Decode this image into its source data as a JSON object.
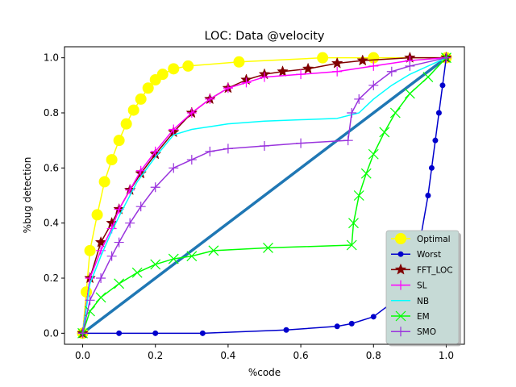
{
  "chart_data": {
    "type": "line",
    "title": "LOC: Data @velocity",
    "xlabel": "%code",
    "ylabel": "%bug detection",
    "xlim": [
      -0.05,
      1.05
    ],
    "ylim": [
      -0.04,
      1.04
    ],
    "xticks": [
      "0.0",
      "0.2",
      "0.4",
      "0.6",
      "0.8",
      "1.0"
    ],
    "yticks": [
      "0.0",
      "0.2",
      "0.4",
      "0.6",
      "0.8",
      "1.0"
    ],
    "grid": false,
    "legend_position": "lower-right",
    "series": [
      {
        "name": "Optimal",
        "color": "#ffff00",
        "marker": "circle-large",
        "points": [
          [
            0,
            0
          ],
          [
            0.01,
            0.15
          ],
          [
            0.02,
            0.3
          ],
          [
            0.04,
            0.43
          ],
          [
            0.06,
            0.55
          ],
          [
            0.08,
            0.63
          ],
          [
            0.1,
            0.7
          ],
          [
            0.12,
            0.76
          ],
          [
            0.14,
            0.81
          ],
          [
            0.16,
            0.85
          ],
          [
            0.18,
            0.89
          ],
          [
            0.2,
            0.92
          ],
          [
            0.22,
            0.94
          ],
          [
            0.25,
            0.96
          ],
          [
            0.29,
            0.97
          ],
          [
            0.43,
            0.985
          ],
          [
            0.66,
            1.0
          ],
          [
            0.8,
            1.0
          ],
          [
            1.0,
            1.0
          ]
        ]
      },
      {
        "name": "Worst",
        "color": "#0000cc",
        "marker": "circle",
        "points": [
          [
            0,
            0
          ],
          [
            0.1,
            0
          ],
          [
            0.2,
            0
          ],
          [
            0.33,
            0
          ],
          [
            0.56,
            0.012
          ],
          [
            0.7,
            0.025
          ],
          [
            0.74,
            0.035
          ],
          [
            0.8,
            0.06
          ],
          [
            0.85,
            0.11
          ],
          [
            0.88,
            0.16
          ],
          [
            0.91,
            0.25
          ],
          [
            0.93,
            0.35
          ],
          [
            0.95,
            0.5
          ],
          [
            0.96,
            0.6
          ],
          [
            0.97,
            0.7
          ],
          [
            0.98,
            0.8
          ],
          [
            0.99,
            0.9
          ],
          [
            1.0,
            1.0
          ]
        ]
      },
      {
        "name": "FFT_LOC",
        "color": "#800000",
        "marker": "star",
        "points": [
          [
            0,
            0
          ],
          [
            0.02,
            0.2
          ],
          [
            0.05,
            0.33
          ],
          [
            0.08,
            0.4
          ],
          [
            0.1,
            0.45
          ],
          [
            0.13,
            0.52
          ],
          [
            0.16,
            0.58
          ],
          [
            0.2,
            0.65
          ],
          [
            0.25,
            0.73
          ],
          [
            0.3,
            0.8
          ],
          [
            0.35,
            0.85
          ],
          [
            0.4,
            0.89
          ],
          [
            0.45,
            0.92
          ],
          [
            0.5,
            0.94
          ],
          [
            0.55,
            0.95
          ],
          [
            0.62,
            0.96
          ],
          [
            0.7,
            0.98
          ],
          [
            0.77,
            0.99
          ],
          [
            0.9,
            1.0
          ],
          [
            1.0,
            1.0
          ]
        ]
      },
      {
        "name": "SL",
        "color": "#ff00ff",
        "marker": "plus",
        "points": [
          [
            0,
            0
          ],
          [
            0.02,
            0.2
          ],
          [
            0.05,
            0.3
          ],
          [
            0.08,
            0.38
          ],
          [
            0.1,
            0.45
          ],
          [
            0.13,
            0.52
          ],
          [
            0.16,
            0.59
          ],
          [
            0.2,
            0.66
          ],
          [
            0.25,
            0.74
          ],
          [
            0.3,
            0.8
          ],
          [
            0.35,
            0.85
          ],
          [
            0.4,
            0.89
          ],
          [
            0.45,
            0.91
          ],
          [
            0.5,
            0.93
          ],
          [
            0.6,
            0.94
          ],
          [
            0.7,
            0.95
          ],
          [
            0.8,
            0.97
          ],
          [
            0.9,
            0.99
          ],
          [
            1.0,
            1.0
          ]
        ]
      },
      {
        "name": "NB",
        "color": "#00ffff",
        "marker": "none",
        "points": [
          [
            0,
            0
          ],
          [
            0.02,
            0.18
          ],
          [
            0.05,
            0.28
          ],
          [
            0.08,
            0.37
          ],
          [
            0.11,
            0.45
          ],
          [
            0.15,
            0.55
          ],
          [
            0.2,
            0.64
          ],
          [
            0.25,
            0.72
          ],
          [
            0.3,
            0.74
          ],
          [
            0.35,
            0.75
          ],
          [
            0.4,
            0.76
          ],
          [
            0.5,
            0.77
          ],
          [
            0.6,
            0.775
          ],
          [
            0.7,
            0.78
          ],
          [
            0.76,
            0.8
          ],
          [
            0.8,
            0.85
          ],
          [
            0.85,
            0.9
          ],
          [
            0.9,
            0.94
          ],
          [
            0.95,
            0.97
          ],
          [
            1.0,
            1.0
          ]
        ]
      },
      {
        "name": "EM",
        "color": "#00ff00",
        "marker": "x",
        "points": [
          [
            0,
            0
          ],
          [
            0.02,
            0.08
          ],
          [
            0.05,
            0.13
          ],
          [
            0.1,
            0.18
          ],
          [
            0.15,
            0.22
          ],
          [
            0.2,
            0.25
          ],
          [
            0.25,
            0.27
          ],
          [
            0.3,
            0.28
          ],
          [
            0.36,
            0.3
          ],
          [
            0.51,
            0.31
          ],
          [
            0.74,
            0.32
          ],
          [
            0.745,
            0.4
          ],
          [
            0.76,
            0.5
          ],
          [
            0.78,
            0.58
          ],
          [
            0.8,
            0.65
          ],
          [
            0.83,
            0.73
          ],
          [
            0.86,
            0.8
          ],
          [
            0.9,
            0.87
          ],
          [
            0.95,
            0.93
          ],
          [
            1.0,
            1.0
          ]
        ]
      },
      {
        "name": "SMO",
        "color": "#9933dd",
        "marker": "plus",
        "points": [
          [
            0,
            0
          ],
          [
            0.02,
            0.12
          ],
          [
            0.05,
            0.2
          ],
          [
            0.08,
            0.28
          ],
          [
            0.1,
            0.33
          ],
          [
            0.13,
            0.4
          ],
          [
            0.16,
            0.46
          ],
          [
            0.2,
            0.53
          ],
          [
            0.25,
            0.6
          ],
          [
            0.3,
            0.63
          ],
          [
            0.35,
            0.66
          ],
          [
            0.4,
            0.67
          ],
          [
            0.5,
            0.68
          ],
          [
            0.6,
            0.69
          ],
          [
            0.73,
            0.7
          ],
          [
            0.74,
            0.8
          ],
          [
            0.76,
            0.85
          ],
          [
            0.8,
            0.9
          ],
          [
            0.85,
            0.95
          ],
          [
            0.9,
            0.97
          ],
          [
            1.0,
            1.0
          ]
        ]
      },
      {
        "name": "",
        "color": "#1f77b4",
        "marker": "none",
        "thick": true,
        "points": [
          [
            0,
            0
          ],
          [
            1.0,
            1.0
          ]
        ]
      }
    ]
  }
}
